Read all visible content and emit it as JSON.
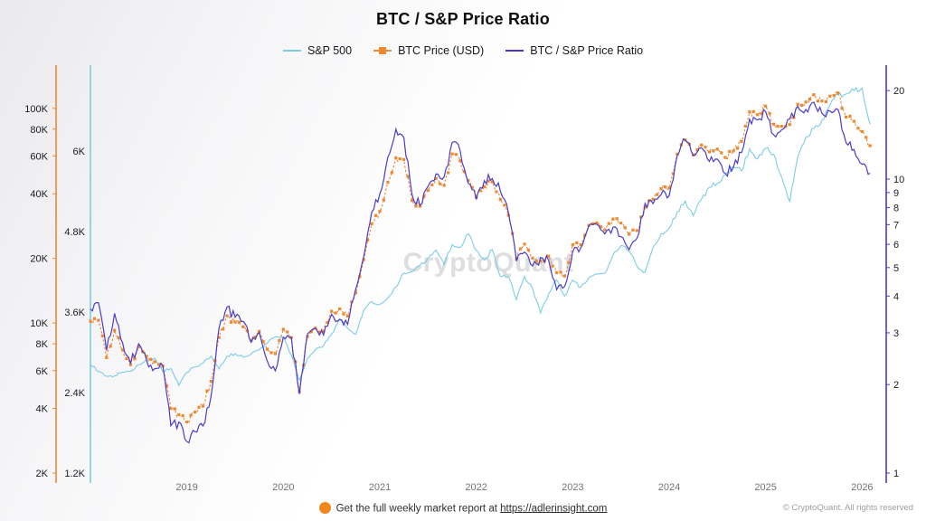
{
  "title": "BTC / S&P Price Ratio",
  "watermark": "CryptoQuant",
  "legend": [
    {
      "label": "S&P 500",
      "color": "#7bcde4",
      "type": "line"
    },
    {
      "label": "BTC Price (USD)",
      "color": "#ee8831",
      "type": "square-dash"
    },
    {
      "label": "BTC / S&P Price Ratio",
      "color": "#4a3cc9",
      "type": "line"
    }
  ],
  "footer": {
    "dot_color": "#f0871c",
    "report_text": "Get the full weekly market report at",
    "report_link": "https://adlerinsight.com",
    "copyright": "© CryptoQuant. All rights reserved"
  },
  "chart_data": {
    "type": "line",
    "subtype": "multi-axis-time-series",
    "title": "BTC / S&P Price Ratio",
    "grid": false,
    "legend_position": "top",
    "x_start": 2018.0,
    "x_step_months": 1,
    "x_range": [
      2018.0,
      2026.25
    ],
    "x_ticks": [
      2019,
      2020,
      2021,
      2022,
      2023,
      2024,
      2025,
      2026
    ],
    "axes": {
      "btc": {
        "side": "outer-left",
        "scale": "log",
        "min": 2000,
        "max": 150000,
        "color": "#ee8831",
        "ticks": [
          {
            "v": 100000,
            "label": "100K"
          },
          {
            "v": 80000,
            "label": "80K"
          },
          {
            "v": 60000,
            "label": "60K"
          },
          {
            "v": 40000,
            "label": "40K"
          },
          {
            "v": 20000,
            "label": "20K"
          },
          {
            "v": 10000,
            "label": "10K"
          },
          {
            "v": 8000,
            "label": "8K"
          },
          {
            "v": 6000,
            "label": "6K"
          },
          {
            "v": 4000,
            "label": "4K"
          },
          {
            "v": 2000,
            "label": "2K"
          }
        ]
      },
      "sp": {
        "side": "inner-left",
        "scale": "linear",
        "min": 1200,
        "max": 7200,
        "color": "#7bcde4",
        "ticks": [
          {
            "v": 6000,
            "label": "6K"
          },
          {
            "v": 4800,
            "label": "4.8K"
          },
          {
            "v": 3600,
            "label": "3.6K"
          },
          {
            "v": 2400,
            "label": "2.4K"
          },
          {
            "v": 1200,
            "label": "1.2K"
          }
        ]
      },
      "ratio": {
        "side": "right",
        "scale": "log",
        "min": 1,
        "max": 23.4,
        "color": "#4a3cc9",
        "ticks": [
          {
            "v": 20,
            "label": "20"
          },
          {
            "v": 10,
            "label": "10"
          },
          {
            "v": 9,
            "label": "9"
          },
          {
            "v": 8,
            "label": "8"
          },
          {
            "v": 7,
            "label": "7"
          },
          {
            "v": 6,
            "label": "6"
          },
          {
            "v": 5,
            "label": "5"
          },
          {
            "v": 4,
            "label": "4"
          },
          {
            "v": 3,
            "label": "3"
          },
          {
            "v": 2,
            "label": "2"
          },
          {
            "v": 1,
            "label": "1"
          }
        ]
      }
    },
    "series": [
      {
        "name": "S&P 500",
        "axis": "sp",
        "color": "#7bcde4",
        "values": [
          2824,
          2714,
          2641,
          2648,
          2705,
          2718,
          2816,
          2902,
          2914,
          2712,
          2760,
          2507,
          2704,
          2784,
          2834,
          2946,
          2752,
          2942,
          2980,
          2926,
          2977,
          3038,
          3141,
          3231,
          3226,
          2954,
          2585,
          2912,
          3044,
          3100,
          3271,
          3500,
          3363,
          3270,
          3622,
          3756,
          3714,
          3811,
          3973,
          4181,
          4204,
          4298,
          4395,
          4523,
          4308,
          4605,
          4567,
          4766,
          4516,
          4374,
          4530,
          4132,
          4132,
          3785,
          4130,
          3955,
          3586,
          3872,
          4080,
          3840,
          4077,
          3970,
          4109,
          4169,
          4180,
          4450,
          4589,
          4508,
          4288,
          4194,
          4568,
          4770,
          4846,
          5096,
          5254,
          5036,
          5278,
          5460,
          5522,
          5648,
          5762,
          5705,
          6032,
          5882,
          6041,
          5955,
          5612,
          5250,
          5912,
          6205,
          6339,
          6460,
          6688,
          6840,
          6850,
          6900,
          6940,
          6400
        ]
      },
      {
        "name": "BTC Price (USD)",
        "axis": "btc",
        "color": "#ee8831",
        "values": [
          10200,
          10300,
          6900,
          9250,
          7500,
          6400,
          7750,
          7000,
          6600,
          6300,
          4000,
          3740,
          3460,
          3850,
          4100,
          5350,
          8560,
          10800,
          10100,
          9600,
          8300,
          9150,
          7550,
          7200,
          9350,
          8550,
          4800,
          8650,
          9460,
          9140,
          11350,
          11650,
          10780,
          13800,
          19700,
          29000,
          33100,
          45200,
          58800,
          57750,
          37300,
          35000,
          41500,
          47100,
          43800,
          61300,
          57000,
          46200,
          38500,
          43200,
          45500,
          37600,
          31800,
          19900,
          23300,
          20050,
          19400,
          20500,
          17150,
          16550,
          23100,
          23150,
          28500,
          29250,
          27200,
          30480,
          29230,
          25930,
          26960,
          34650,
          37700,
          42250,
          42580,
          61200,
          71300,
          60600,
          67500,
          62700,
          64600,
          58970,
          63330,
          70200,
          96400,
          93400,
          102400,
          84350,
          82550,
          84000,
          104600,
          107100,
          115800,
          108200,
          114000,
          118000,
          91000,
          87000,
          78000,
          67000
        ]
      },
      {
        "name": "BTC / S&P Price Ratio",
        "axis": "ratio",
        "color": "#4a3cc9",
        "values": [
          3.61,
          3.8,
          2.61,
          3.49,
          2.77,
          2.35,
          2.75,
          2.41,
          2.27,
          2.32,
          1.45,
          1.49,
          1.28,
          1.38,
          1.45,
          1.82,
          3.11,
          3.67,
          3.39,
          3.28,
          2.79,
          3.01,
          2.4,
          2.23,
          2.9,
          2.89,
          1.86,
          2.97,
          3.11,
          2.95,
          3.47,
          3.33,
          3.21,
          4.22,
          5.44,
          7.72,
          8.91,
          11.86,
          14.8,
          13.81,
          8.87,
          8.14,
          9.44,
          10.41,
          10.17,
          13.31,
          12.48,
          9.69,
          8.53,
          9.88,
          10.04,
          9.1,
          7.7,
          5.26,
          5.64,
          5.07,
          5.41,
          5.29,
          4.2,
          4.31,
          5.67,
          5.83,
          6.94,
          7.02,
          6.51,
          6.85,
          6.37,
          5.75,
          6.29,
          8.26,
          8.25,
          8.86,
          8.79,
          12.01,
          13.57,
          12.03,
          12.79,
          11.48,
          11.7,
          10.44,
          10.99,
          12.31,
          15.98,
          15.88,
          16.95,
          14.16,
          14.71,
          16.0,
          17.69,
          17.26,
          18.27,
          16.75,
          17.05,
          17.25,
          13.28,
          12.61,
          11.24,
          10.47
        ]
      }
    ]
  }
}
